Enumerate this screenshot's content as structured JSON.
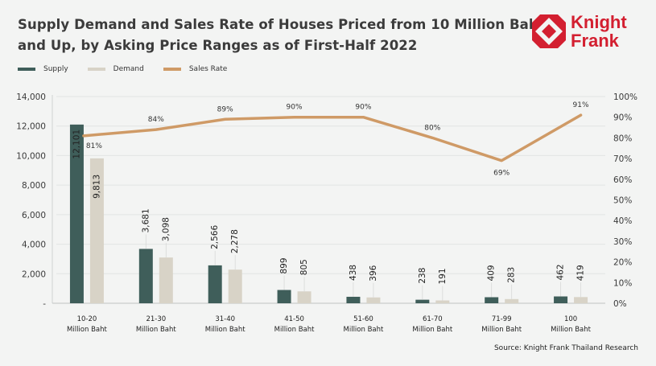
{
  "title": {
    "line1": "Supply Demand and Sales Rate of Houses Priced from 10 Million Baht",
    "line2": "and Up, by Asking Price Ranges as of First-Half 2022"
  },
  "logo": {
    "line1": "Knight",
    "line2": "Frank",
    "icon": "knight-frank-diamond-logo-icon"
  },
  "legend": [
    {
      "label": "Supply",
      "color": "#3f5e5a"
    },
    {
      "label": "Demand",
      "color": "#d8d3c7"
    },
    {
      "label": "Sales Rate",
      "color": "#cf9a66"
    }
  ],
  "source": "Source: Knight Frank Thailand Research",
  "chart_data": {
    "type": "bar",
    "title": "Supply Demand and Sales Rate of Houses Priced from 10 Million Baht and Up, by Asking Price Ranges as of First-Half 2022",
    "categories": [
      [
        "10-20",
        "Million Baht"
      ],
      [
        "21-30",
        "Million Baht"
      ],
      [
        "31-40",
        "Million Baht"
      ],
      [
        "41-50",
        "Million Baht"
      ],
      [
        "51-60",
        "Million Baht"
      ],
      [
        "61-70",
        "Million Baht"
      ],
      [
        "71-99",
        "Million Baht"
      ],
      [
        "100",
        "Million Baht"
      ]
    ],
    "series": [
      {
        "name": "Supply",
        "type": "bar",
        "axis": "left",
        "color": "#3f5e5a",
        "values": [
          12101,
          3681,
          2566,
          899,
          438,
          238,
          409,
          462
        ],
        "labels": [
          "12,101",
          "3,681",
          "2,566",
          "899",
          "438",
          "238",
          "409",
          "462"
        ]
      },
      {
        "name": "Demand",
        "type": "bar",
        "axis": "left",
        "color": "#d8d3c7",
        "values": [
          9813,
          3098,
          2278,
          805,
          396,
          191,
          283,
          419
        ],
        "labels": [
          "9,813",
          "3,098",
          "2,278",
          "805",
          "396",
          "191",
          "283",
          "419"
        ]
      },
      {
        "name": "Sales Rate",
        "type": "line",
        "axis": "right",
        "color": "#cf9a66",
        "values": [
          81,
          84,
          89,
          90,
          90,
          80,
          69,
          91
        ],
        "labels": [
          "81%",
          "84%",
          "89%",
          "90%",
          "90%",
          "80%",
          "69%",
          "91%"
        ]
      }
    ],
    "y_left": {
      "min": 0,
      "max": 14000,
      "ticks": [
        0,
        2000,
        4000,
        6000,
        8000,
        10000,
        12000,
        14000
      ],
      "tick_labels": [
        "-",
        "2,000",
        "4,000",
        "6,000",
        "8,000",
        "10,000",
        "12,000",
        "14,000"
      ]
    },
    "y_right": {
      "min": 0,
      "max": 100,
      "ticks": [
        0,
        10,
        20,
        30,
        40,
        50,
        60,
        70,
        80,
        90,
        100
      ],
      "tick_labels": [
        "0%",
        "10%",
        "20%",
        "30%",
        "40%",
        "50%",
        "60%",
        "70%",
        "80%",
        "90%",
        "100%"
      ]
    },
    "xlabel": "",
    "ylabel": "",
    "grid": true,
    "legend_position": "top-left"
  }
}
